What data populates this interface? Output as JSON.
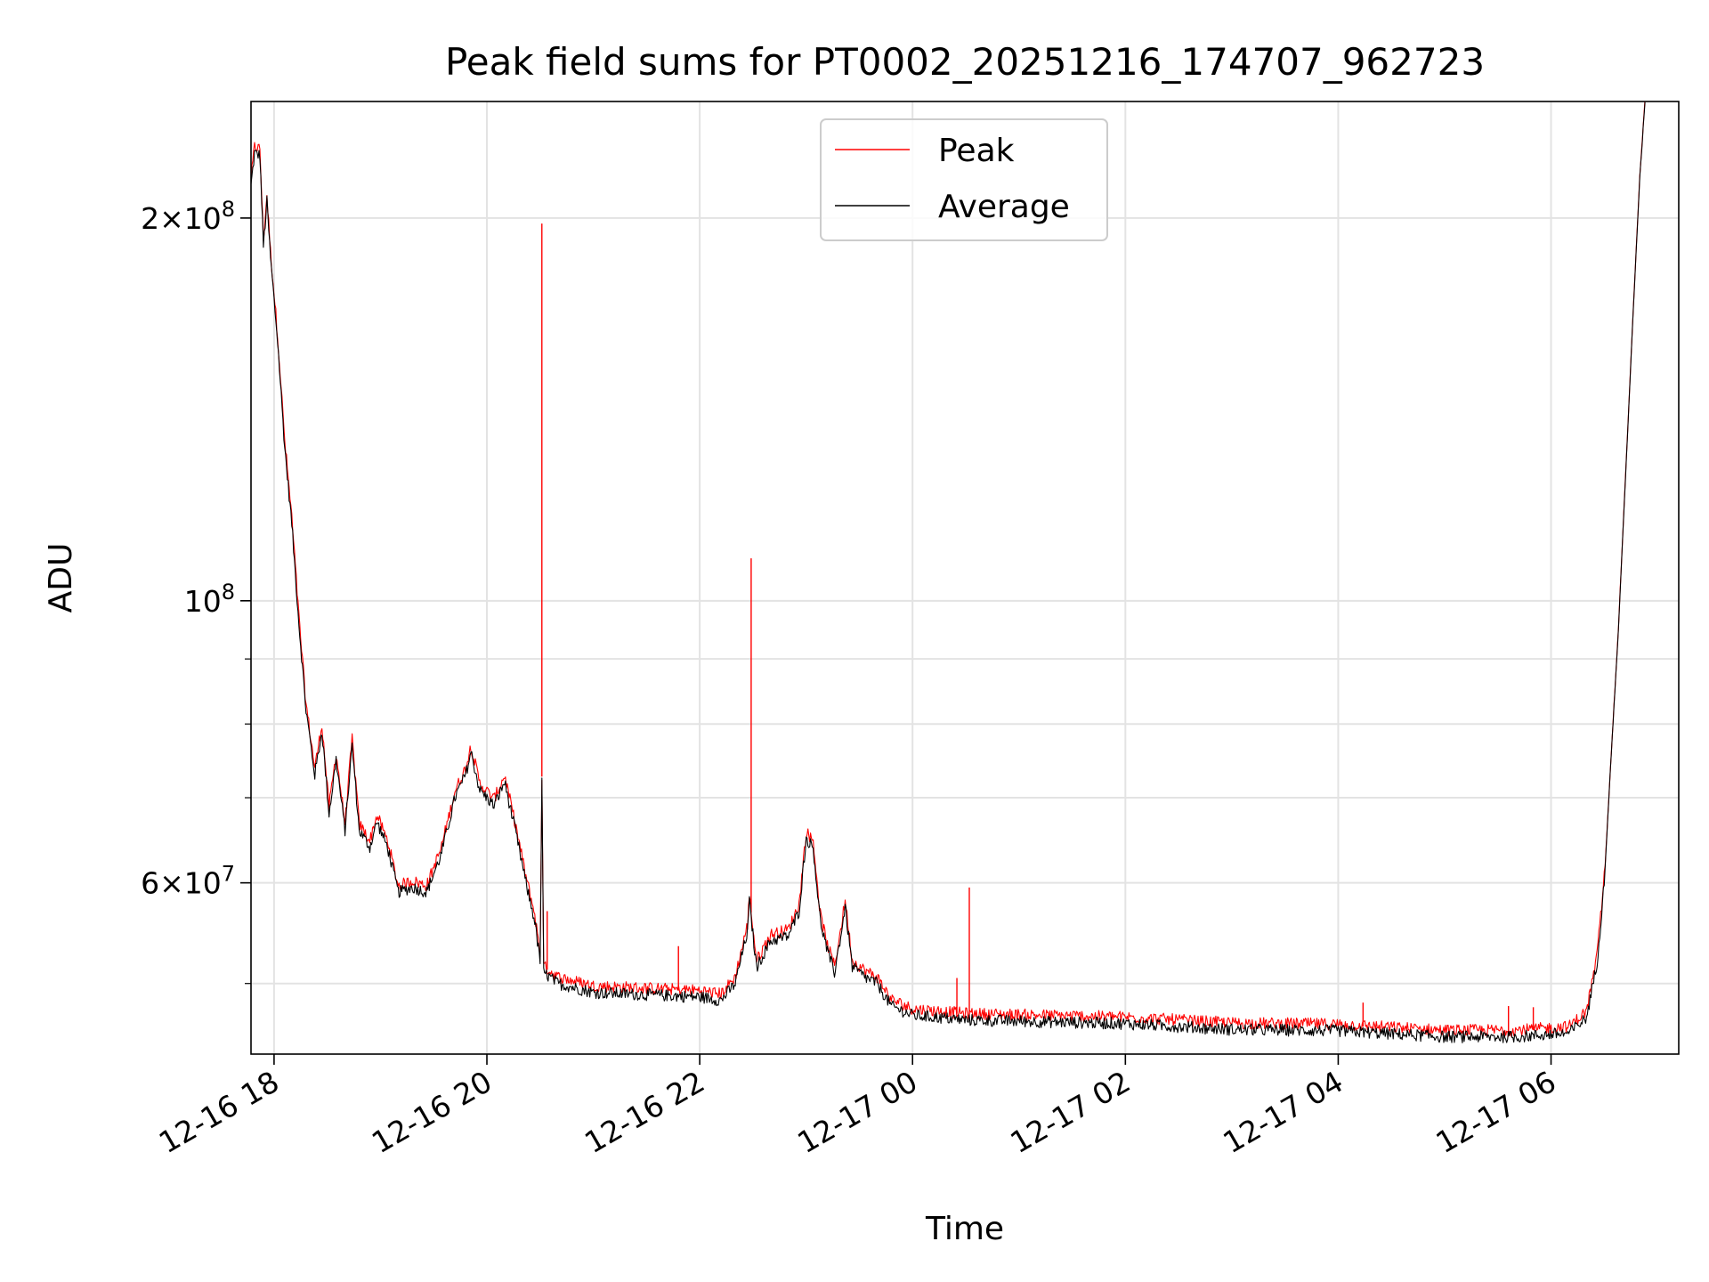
{
  "chart_data": {
    "type": "line",
    "title": "Peak field sums for PT0002_20251216_174707_962723",
    "xlabel": "Time",
    "ylabel": "ADU",
    "y_scale": "log",
    "ylim": [
      44000000,
      247000000
    ],
    "xlim": [
      "2025-12-16 17:47",
      "2025-12-17 07:12"
    ],
    "grid": true,
    "legend_position": "upper center",
    "x_ticks": [
      {
        "t": "2025-12-16 18:00",
        "label": "12-16 18"
      },
      {
        "t": "2025-12-16 20:00",
        "label": "12-16 20"
      },
      {
        "t": "2025-12-16 22:00",
        "label": "12-16 22"
      },
      {
        "t": "2025-12-17 00:00",
        "label": "12-17 00"
      },
      {
        "t": "2025-12-17 02:00",
        "label": "12-17 02"
      },
      {
        "t": "2025-12-17 04:00",
        "label": "12-17 04"
      },
      {
        "t": "2025-12-17 06:00",
        "label": "12-17 06"
      }
    ],
    "y_major_ticks": [
      {
        "v": 60000000,
        "mant": "6",
        "exp": "7"
      },
      {
        "v": 100000000,
        "mant": "",
        "exp": "8"
      },
      {
        "v": 200000000,
        "mant": "2",
        "exp": "8"
      }
    ],
    "y_minor_ticks": [
      50000000,
      70000000,
      80000000,
      90000000,
      300000000
    ],
    "series": [
      {
        "name": "Average",
        "color": "#000000",
        "points": [
          [
            "2025-12-16 17:47",
            212000000
          ],
          [
            "2025-12-16 17:49",
            225000000
          ],
          [
            "2025-12-16 17:52",
            224000000
          ],
          [
            "2025-12-16 17:54",
            190000000
          ],
          [
            "2025-12-16 17:56",
            206000000
          ],
          [
            "2025-12-16 17:58",
            186000000
          ],
          [
            "2025-12-16 18:02",
            160000000
          ],
          [
            "2025-12-16 18:06",
            132000000
          ],
          [
            "2025-12-16 18:10",
            115000000
          ],
          [
            "2025-12-16 18:14",
            96000000
          ],
          [
            "2025-12-16 18:18",
            82000000
          ],
          [
            "2025-12-16 18:23",
            73000000
          ],
          [
            "2025-12-16 18:27",
            79000000
          ],
          [
            "2025-12-16 18:31",
            68000000
          ],
          [
            "2025-12-16 18:35",
            75000000
          ],
          [
            "2025-12-16 18:40",
            66000000
          ],
          [
            "2025-12-16 18:44",
            77000000
          ],
          [
            "2025-12-16 18:48",
            66000000
          ],
          [
            "2025-12-16 18:54",
            64000000
          ],
          [
            "2025-12-16 18:58",
            67000000
          ],
          [
            "2025-12-16 19:04",
            64000000
          ],
          [
            "2025-12-16 19:10",
            59000000
          ],
          [
            "2025-12-16 19:18",
            59500000
          ],
          [
            "2025-12-16 19:26",
            59000000
          ],
          [
            "2025-12-16 19:34",
            63000000
          ],
          [
            "2025-12-16 19:42",
            70000000
          ],
          [
            "2025-12-16 19:48",
            73000000
          ],
          [
            "2025-12-16 19:51",
            76000000
          ],
          [
            "2025-12-16 19:56",
            71000000
          ],
          [
            "2025-12-16 20:04",
            69000000
          ],
          [
            "2025-12-16 20:10",
            72000000
          ],
          [
            "2025-12-16 20:16",
            66000000
          ],
          [
            "2025-12-16 20:22",
            60000000
          ],
          [
            "2025-12-16 20:27",
            56000000
          ],
          [
            "2025-12-16 20:30",
            52000000
          ],
          [
            "2025-12-16 20:31",
            72000000
          ],
          [
            "2025-12-16 20:32",
            51000000
          ],
          [
            "2025-12-16 20:40",
            50000000
          ],
          [
            "2025-12-16 21:00",
            49200000
          ],
          [
            "2025-12-16 21:30",
            49000000
          ],
          [
            "2025-12-16 22:00",
            48800000
          ],
          [
            "2025-12-16 22:12",
            48500000
          ],
          [
            "2025-12-16 22:20",
            50000000
          ],
          [
            "2025-12-16 22:27",
            55000000
          ],
          [
            "2025-12-16 22:28",
            58000000
          ],
          [
            "2025-12-16 22:32",
            51500000
          ],
          [
            "2025-12-16 22:40",
            54000000
          ],
          [
            "2025-12-16 22:50",
            54500000
          ],
          [
            "2025-12-16 22:56",
            57000000
          ],
          [
            "2025-12-16 23:00",
            65000000
          ],
          [
            "2025-12-16 23:04",
            64000000
          ],
          [
            "2025-12-16 23:08",
            56000000
          ],
          [
            "2025-12-16 23:12",
            53000000
          ],
          [
            "2025-12-16 23:16",
            51000000
          ],
          [
            "2025-12-16 23:20",
            55000000
          ],
          [
            "2025-12-16 23:22",
            57500000
          ],
          [
            "2025-12-16 23:26",
            51500000
          ],
          [
            "2025-12-16 23:34",
            50500000
          ],
          [
            "2025-12-16 23:40",
            50000000
          ],
          [
            "2025-12-16 23:48",
            48000000
          ],
          [
            "2025-12-17 00:00",
            47200000
          ],
          [
            "2025-12-17 00:30",
            46800000
          ],
          [
            "2025-12-17 01:00",
            46700000
          ],
          [
            "2025-12-17 02:00",
            46500000
          ],
          [
            "2025-12-17 03:00",
            46000000
          ],
          [
            "2025-12-17 04:00",
            45900000
          ],
          [
            "2025-12-17 05:00",
            45400000
          ],
          [
            "2025-12-17 05:40",
            45400000
          ],
          [
            "2025-12-17 06:10",
            45700000
          ],
          [
            "2025-12-17 06:20",
            47000000
          ],
          [
            "2025-12-17 06:26",
            52000000
          ],
          [
            "2025-12-17 06:30",
            60000000
          ],
          [
            "2025-12-17 06:34",
            76000000
          ],
          [
            "2025-12-17 06:38",
            95000000
          ],
          [
            "2025-12-17 06:42",
            125000000
          ],
          [
            "2025-12-17 06:46",
            165000000
          ],
          [
            "2025-12-17 06:50",
            215000000
          ],
          [
            "2025-12-17 06:53",
            247000000
          ]
        ]
      },
      {
        "name": "Peak",
        "color": "#ff0000",
        "spikes": [
          {
            "t": "2025-12-16 20:31",
            "v": 198000000
          },
          {
            "t": "2025-12-16 20:34",
            "v": 57000000
          },
          {
            "t": "2025-12-16 21:48",
            "v": 53500000
          },
          {
            "t": "2025-12-16 22:29",
            "v": 108000000
          },
          {
            "t": "2025-12-17 00:25",
            "v": 50500000
          },
          {
            "t": "2025-12-17 00:32",
            "v": 59500000
          },
          {
            "t": "2025-12-17 04:14",
            "v": 48300000
          },
          {
            "t": "2025-12-17 05:36",
            "v": 48000000
          },
          {
            "t": "2025-12-17 05:50",
            "v": 47900000
          }
        ]
      }
    ]
  }
}
